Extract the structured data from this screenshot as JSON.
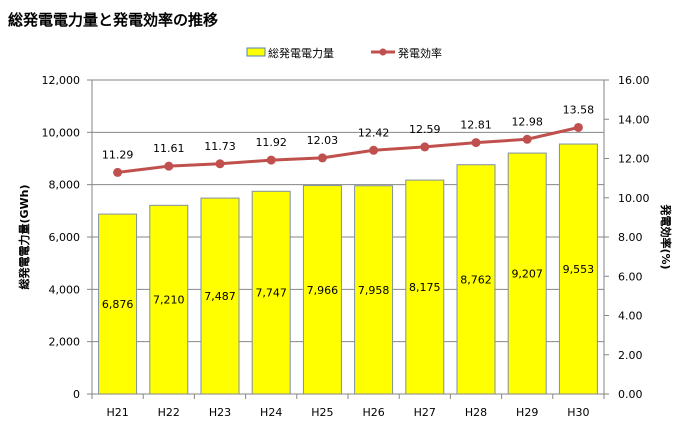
{
  "chart_data": {
    "type": "bar+line",
    "title": "総発電電力量と発電効率の推移",
    "categories": [
      "H21",
      "H22",
      "H23",
      "H24",
      "H25",
      "H26",
      "H27",
      "H28",
      "H29",
      "H30"
    ],
    "series": [
      {
        "name": "総発電電力量",
        "type": "bar",
        "axis": "left",
        "color": "#FFFF00",
        "values": [
          6876,
          7210,
          7487,
          7747,
          7966,
          7958,
          8175,
          8762,
          9207,
          9553
        ],
        "labels": [
          "6,876",
          "7,210",
          "7,487",
          "7,747",
          "7,966",
          "7,958",
          "8,175",
          "8,762",
          "9,207",
          "9,553"
        ]
      },
      {
        "name": "発電効率",
        "type": "line",
        "axis": "right",
        "color": "#C0504D",
        "values": [
          11.29,
          11.61,
          11.73,
          11.92,
          12.03,
          12.42,
          12.59,
          12.81,
          12.98,
          13.58
        ],
        "labels": [
          "11.29",
          "11.61",
          "11.73",
          "11.92",
          "12.03",
          "12.42",
          "12.59",
          "12.81",
          "12.98",
          "13.58"
        ]
      }
    ],
    "ylabel": "総発電電力量(GWh)",
    "y2label": "発電効率(%)",
    "ylim": [
      0,
      12000
    ],
    "y2lim": [
      0,
      16
    ],
    "yticks": [
      "0",
      "2,000",
      "4,000",
      "6,000",
      "8,000",
      "10,000",
      "12,000"
    ],
    "y2ticks": [
      "0.00",
      "2.00",
      "4.00",
      "6.00",
      "8.00",
      "10.00",
      "12.00",
      "14.00",
      "16.00"
    ],
    "grid": true,
    "legend": "top"
  }
}
